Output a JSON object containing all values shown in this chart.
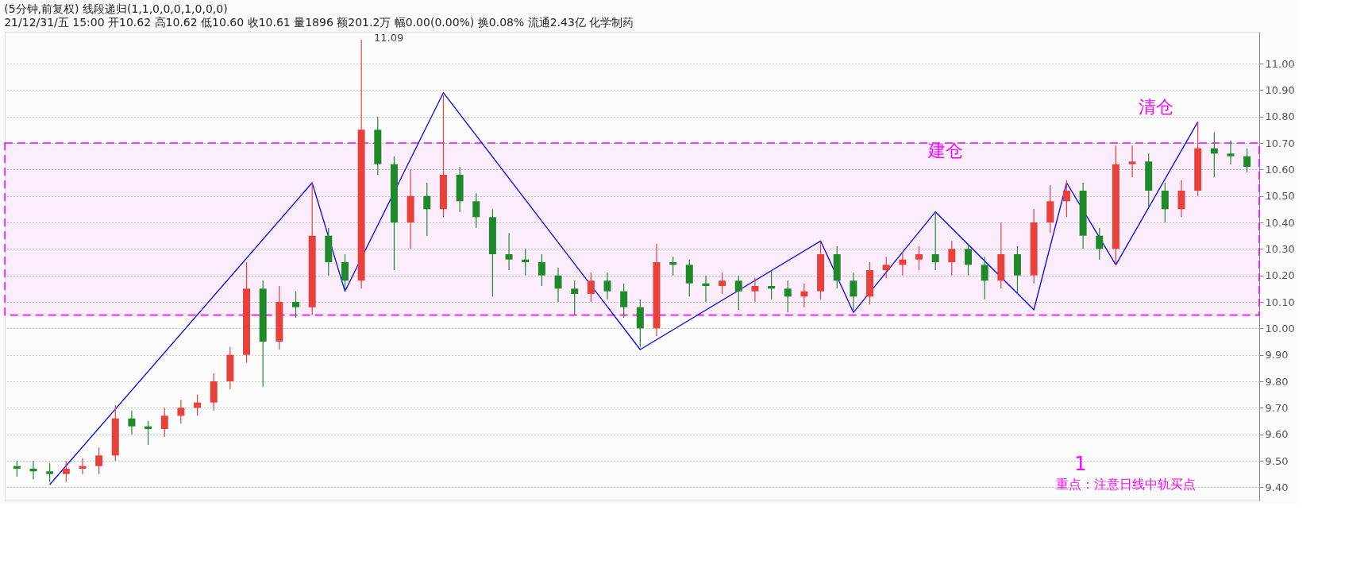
{
  "chart_data": {
    "type": "candlestick",
    "title": "(5分钟,前复权)  线段递归(1,1,0,0,0,1,0,0,0)",
    "subtitle": "21/12/31/五 15:00 开10.62 高10.62 低10.60 收10.61 量1896 额201.2万 幅0.00(0.00%) 换0.08% 流通2.43亿 化学制药",
    "categories": [
      null,
      null,
      null,
      null,
      null,
      null,
      null,
      null,
      null,
      null,
      null,
      null,
      null,
      null,
      null,
      null,
      null,
      null,
      null,
      null,
      null,
      null,
      null,
      null,
      null,
      null,
      null,
      null,
      null,
      null,
      null,
      null,
      null,
      null,
      null,
      null,
      null,
      null,
      null,
      null,
      null,
      null,
      null,
      null,
      null,
      null,
      null,
      null,
      null,
      null,
      null,
      null,
      null,
      null,
      null,
      null,
      null,
      null,
      null,
      null,
      null,
      null,
      null,
      null,
      null,
      null,
      null,
      null,
      null,
      null,
      null,
      null,
      null,
      null,
      null,
      null
    ],
    "ohlc": [
      [
        9.48,
        9.5,
        9.44,
        9.47
      ],
      [
        9.47,
        9.5,
        9.43,
        9.46
      ],
      [
        9.46,
        9.49,
        9.42,
        9.45
      ],
      [
        9.45,
        9.5,
        9.42,
        9.47
      ],
      [
        9.47,
        9.51,
        9.45,
        9.48
      ],
      [
        9.48,
        9.55,
        9.45,
        9.52
      ],
      [
        9.52,
        9.71,
        9.5,
        9.66
      ],
      [
        9.66,
        9.69,
        9.6,
        9.63
      ],
      [
        9.63,
        9.65,
        9.56,
        9.62
      ],
      [
        9.62,
        9.7,
        9.59,
        9.67
      ],
      [
        9.67,
        9.73,
        9.64,
        9.7
      ],
      [
        9.7,
        9.75,
        9.67,
        9.72
      ],
      [
        9.72,
        9.83,
        9.69,
        9.8
      ],
      [
        9.8,
        9.93,
        9.77,
        9.9
      ],
      [
        9.9,
        10.25,
        9.87,
        10.15
      ],
      [
        10.15,
        10.18,
        9.78,
        9.95
      ],
      [
        9.95,
        10.16,
        9.92,
        10.1
      ],
      [
        10.1,
        10.14,
        10.04,
        10.08
      ],
      [
        10.08,
        10.55,
        10.05,
        10.35
      ],
      [
        10.35,
        10.38,
        10.2,
        10.25
      ],
      [
        10.25,
        10.28,
        10.14,
        10.18
      ],
      [
        10.18,
        11.09,
        10.15,
        10.75
      ],
      [
        10.75,
        10.8,
        10.58,
        10.62
      ],
      [
        10.62,
        10.65,
        10.22,
        10.4
      ],
      [
        10.4,
        10.6,
        10.3,
        10.5
      ],
      [
        10.5,
        10.55,
        10.35,
        10.45
      ],
      [
        10.45,
        10.88,
        10.42,
        10.58
      ],
      [
        10.58,
        10.61,
        10.44,
        10.48
      ],
      [
        10.48,
        10.51,
        10.38,
        10.42
      ],
      [
        10.42,
        10.45,
        10.12,
        10.28
      ],
      [
        10.28,
        10.36,
        10.22,
        10.26
      ],
      [
        10.26,
        10.3,
        10.2,
        10.25
      ],
      [
        10.25,
        10.28,
        10.16,
        10.2
      ],
      [
        10.2,
        10.23,
        10.1,
        10.15
      ],
      [
        10.15,
        10.18,
        10.05,
        10.13
      ],
      [
        10.13,
        10.21,
        10.1,
        10.18
      ],
      [
        10.18,
        10.21,
        10.11,
        10.14
      ],
      [
        10.14,
        10.17,
        10.04,
        10.08
      ],
      [
        10.08,
        10.11,
        9.93,
        10.0
      ],
      [
        10.0,
        10.32,
        9.97,
        10.25
      ],
      [
        10.25,
        10.27,
        10.2,
        10.24
      ],
      [
        10.24,
        10.26,
        10.12,
        10.17
      ],
      [
        10.17,
        10.2,
        10.1,
        10.16
      ],
      [
        10.16,
        10.21,
        10.13,
        10.18
      ],
      [
        10.18,
        10.2,
        10.07,
        10.14
      ],
      [
        10.14,
        10.19,
        10.1,
        10.16
      ],
      [
        10.16,
        10.22,
        10.11,
        10.15
      ],
      [
        10.15,
        10.18,
        10.06,
        10.12
      ],
      [
        10.12,
        10.17,
        10.08,
        10.14
      ],
      [
        10.14,
        10.33,
        10.11,
        10.28
      ],
      [
        10.28,
        10.31,
        10.15,
        10.18
      ],
      [
        10.18,
        10.21,
        10.07,
        10.12
      ],
      [
        10.12,
        10.25,
        10.09,
        10.22
      ],
      [
        10.22,
        10.27,
        10.19,
        10.24
      ],
      [
        10.24,
        10.29,
        10.2,
        10.26
      ],
      [
        10.26,
        10.31,
        10.22,
        10.28
      ],
      [
        10.28,
        10.44,
        10.22,
        10.25
      ],
      [
        10.25,
        10.33,
        10.2,
        10.3
      ],
      [
        10.3,
        10.32,
        10.2,
        10.24
      ],
      [
        10.24,
        10.27,
        10.11,
        10.18
      ],
      [
        10.18,
        10.4,
        10.15,
        10.28
      ],
      [
        10.28,
        10.31,
        10.13,
        10.2
      ],
      [
        10.2,
        10.45,
        10.17,
        10.4
      ],
      [
        10.4,
        10.54,
        10.36,
        10.48
      ],
      [
        10.48,
        10.56,
        10.42,
        10.52
      ],
      [
        10.52,
        10.55,
        10.3,
        10.35
      ],
      [
        10.35,
        10.38,
        10.26,
        10.3
      ],
      [
        10.3,
        10.69,
        10.24,
        10.62
      ],
      [
        10.62,
        10.69,
        10.57,
        10.63
      ],
      [
        10.63,
        10.66,
        10.46,
        10.52
      ],
      [
        10.52,
        10.55,
        10.4,
        10.45
      ],
      [
        10.45,
        10.56,
        10.42,
        10.52
      ],
      [
        10.52,
        10.78,
        10.5,
        10.68
      ],
      [
        10.68,
        10.74,
        10.57,
        10.66
      ],
      [
        10.66,
        10.71,
        10.62,
        10.65
      ],
      [
        10.65,
        10.68,
        10.59,
        10.61
      ]
    ],
    "series": [
      {
        "type": "line",
        "color": "#0000ff",
        "line_style": "solid",
        "values": [
          null,
          null,
          9.41,
          null,
          null,
          null,
          null,
          null,
          null,
          null,
          null,
          null,
          null,
          null,
          null,
          null,
          null,
          null,
          10.55,
          null,
          10.14,
          null,
          null,
          null,
          null,
          null,
          10.89,
          null,
          null,
          null,
          null,
          null,
          null,
          null,
          null,
          null,
          null,
          null,
          9.92,
          null,
          null,
          null,
          null,
          null,
          null,
          null,
          null,
          null,
          null,
          10.33,
          null,
          10.06,
          null,
          null,
          null,
          null,
          10.44,
          null,
          null,
          null,
          null,
          null,
          10.07,
          null,
          10.55,
          null,
          null,
          10.24,
          null,
          null,
          null,
          null,
          10.78,
          null,
          null,
          null
        ]
      }
    ],
    "bands": [
      {
        "axis": "y",
        "from": 10.05,
        "to": 10.7,
        "color": "#ff00ff"
      }
    ],
    "ylim": [
      9.35,
      11.12
    ],
    "yticks": [
      {
        "value": 9.4,
        "label": "9.40"
      },
      {
        "value": 9.5,
        "label": "9.50"
      },
      {
        "value": 9.6,
        "label": "9.60"
      },
      {
        "value": 9.7,
        "label": "9.70"
      },
      {
        "value": 9.8,
        "label": "9.80"
      },
      {
        "value": 9.9,
        "label": "9.90"
      },
      {
        "value": 10.0,
        "label": "10.00"
      },
      {
        "value": 10.1,
        "label": "10.10"
      },
      {
        "value": 10.2,
        "label": "10.20"
      },
      {
        "value": 10.3,
        "label": "10.30"
      },
      {
        "value": 10.4,
        "label": "10.40"
      },
      {
        "value": 10.5,
        "label": "10.50"
      },
      {
        "value": 10.6,
        "label": "10.60"
      },
      {
        "value": 10.7,
        "label": "10.70"
      },
      {
        "value": 10.8,
        "label": "10.80"
      },
      {
        "value": 10.9,
        "label": "10.90"
      },
      {
        "value": 11.0,
        "label": "11.00"
      }
    ],
    "grid": "y",
    "tick_labels": "y",
    "annotations": [
      "11.09",
      "建仓",
      "清仓",
      "1",
      "重点：注意日线中轨买点"
    ]
  }
}
